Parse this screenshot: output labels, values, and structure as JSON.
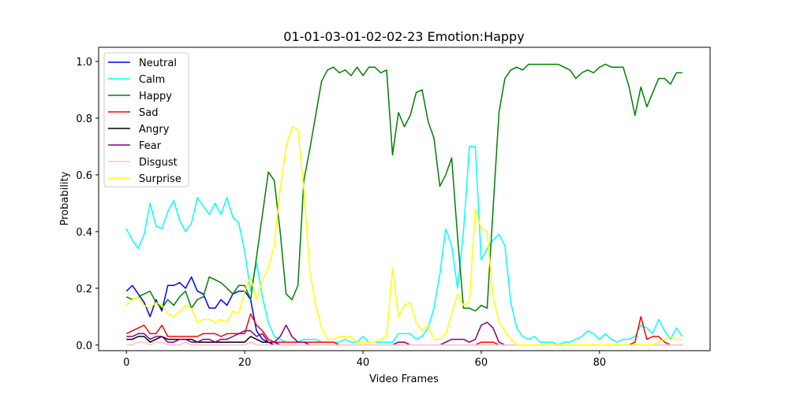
{
  "chart_data": {
    "type": "line",
    "title": "01-01-03-01-02-02-23 Emotion:Happy",
    "xlabel": "Video Frames",
    "ylabel": "Probability",
    "xlim": [
      -4.7,
      98.7
    ],
    "ylim": [
      -0.02,
      1.05
    ],
    "xticks": [
      0,
      20,
      40,
      60,
      80
    ],
    "yticks": [
      0.0,
      0.2,
      0.4,
      0.6,
      0.8,
      1.0
    ],
    "ytick_labels": [
      "0.0",
      "0.2",
      "0.4",
      "0.6",
      "0.8",
      "1.0"
    ],
    "legend_position": "upper-left",
    "grid": false,
    "x": [
      0,
      1,
      2,
      3,
      4,
      5,
      6,
      7,
      8,
      9,
      10,
      11,
      12,
      13,
      14,
      15,
      16,
      17,
      18,
      19,
      20,
      21,
      22,
      23,
      24,
      25,
      26,
      27,
      28,
      29,
      30,
      31,
      32,
      33,
      34,
      35,
      36,
      37,
      38,
      39,
      40,
      41,
      42,
      43,
      44,
      45,
      46,
      47,
      48,
      49,
      50,
      51,
      52,
      53,
      54,
      55,
      56,
      57,
      58,
      59,
      60,
      61,
      62,
      63,
      64,
      65,
      66,
      67,
      68,
      69,
      70,
      71,
      72,
      73,
      74,
      75,
      76,
      77,
      78,
      79,
      80,
      81,
      82,
      83,
      84,
      85,
      86,
      87,
      88,
      89,
      90,
      91,
      92,
      93,
      94
    ],
    "series": [
      {
        "name": "Neutral",
        "color": "#0000ff",
        "values": [
          0.19,
          0.21,
          0.18,
          0.15,
          0.1,
          0.16,
          0.12,
          0.21,
          0.21,
          0.22,
          0.2,
          0.24,
          0.19,
          0.18,
          0.13,
          0.13,
          0.16,
          0.14,
          0.18,
          0.19,
          0.19,
          0.16,
          0.05,
          0.02,
          0.01,
          0.01,
          0.0,
          0.0,
          0.0,
          0.0,
          0.0,
          0.0,
          0.0,
          0.0,
          0.0,
          0.0,
          0.0,
          0.0,
          0.0,
          0.0,
          0.0,
          0.0,
          0.0,
          0.0,
          0.0,
          0.0,
          0.0,
          0.0,
          0.0,
          0.0,
          0.0,
          0.0,
          0.0,
          0.0,
          0.0,
          0.0,
          0.0,
          0.0,
          0.0,
          0.0,
          0.0,
          0.0,
          0.0,
          0.0,
          0.0,
          0.0,
          0.0,
          0.0,
          0.0,
          0.0,
          0.0,
          0.0,
          0.0,
          0.0,
          0.0,
          0.0,
          0.0,
          0.0,
          0.0,
          0.0,
          0.0,
          0.0,
          0.0,
          0.0,
          0.0,
          0.0,
          0.0,
          0.0,
          0.0,
          0.0,
          0.0,
          0.0,
          0.0,
          0.0,
          0.0
        ]
      },
      {
        "name": "Calm",
        "color": "#00ffff",
        "values": [
          0.41,
          0.37,
          0.34,
          0.39,
          0.5,
          0.42,
          0.41,
          0.47,
          0.51,
          0.44,
          0.4,
          0.43,
          0.52,
          0.49,
          0.46,
          0.5,
          0.46,
          0.52,
          0.45,
          0.43,
          0.33,
          0.19,
          0.29,
          0.17,
          0.08,
          0.03,
          0.02,
          0.01,
          0.01,
          0.01,
          0.02,
          0.02,
          0.02,
          0.01,
          0.01,
          0.01,
          0.01,
          0.02,
          0.01,
          0.01,
          0.03,
          0.01,
          0.01,
          0.01,
          0.01,
          0.01,
          0.04,
          0.04,
          0.04,
          0.02,
          0.03,
          0.06,
          0.13,
          0.25,
          0.41,
          0.35,
          0.2,
          0.4,
          0.7,
          0.7,
          0.3,
          0.34,
          0.37,
          0.39,
          0.35,
          0.15,
          0.06,
          0.03,
          0.02,
          0.03,
          0.01,
          0.01,
          0.01,
          0.0,
          0.01,
          0.01,
          0.02,
          0.03,
          0.05,
          0.04,
          0.02,
          0.04,
          0.02,
          0.01,
          0.02,
          0.02,
          0.03,
          0.07,
          0.06,
          0.04,
          0.09,
          0.05,
          0.02,
          0.06,
          0.03
        ]
      },
      {
        "name": "Happy",
        "color": "#008000",
        "values": [
          0.17,
          0.16,
          0.17,
          0.18,
          0.19,
          0.15,
          0.13,
          0.16,
          0.14,
          0.17,
          0.19,
          0.13,
          0.16,
          0.17,
          0.24,
          0.23,
          0.22,
          0.2,
          0.18,
          0.21,
          0.21,
          0.16,
          0.31,
          0.46,
          0.61,
          0.58,
          0.4,
          0.18,
          0.16,
          0.21,
          0.58,
          0.69,
          0.81,
          0.93,
          0.97,
          0.98,
          0.96,
          0.97,
          0.95,
          0.98,
          0.95,
          0.98,
          0.98,
          0.96,
          0.97,
          0.67,
          0.82,
          0.77,
          0.81,
          0.89,
          0.9,
          0.79,
          0.73,
          0.56,
          0.6,
          0.66,
          0.38,
          0.13,
          0.13,
          0.12,
          0.14,
          0.13,
          0.48,
          0.82,
          0.94,
          0.97,
          0.98,
          0.97,
          0.99,
          0.99,
          0.99,
          0.99,
          0.99,
          0.99,
          0.98,
          0.97,
          0.94,
          0.96,
          0.97,
          0.96,
          0.98,
          0.99,
          0.98,
          0.98,
          0.98,
          0.91,
          0.81,
          0.91,
          0.84,
          0.89,
          0.94,
          0.94,
          0.92,
          0.96,
          0.96
        ]
      },
      {
        "name": "Sad",
        "color": "#ff0000",
        "values": [
          0.04,
          0.05,
          0.06,
          0.07,
          0.04,
          0.04,
          0.07,
          0.03,
          0.03,
          0.03,
          0.03,
          0.03,
          0.03,
          0.04,
          0.04,
          0.04,
          0.03,
          0.04,
          0.04,
          0.04,
          0.04,
          0.11,
          0.07,
          0.05,
          0.02,
          0.01,
          0.01,
          0.01,
          0.01,
          0.01,
          0.01,
          0.01,
          0.01,
          0.01,
          0.01,
          0.01,
          0.0,
          0.0,
          0.0,
          0.0,
          0.0,
          0.0,
          0.0,
          0.0,
          0.0,
          0.0,
          0.0,
          0.0,
          0.0,
          0.0,
          0.0,
          0.0,
          0.0,
          0.0,
          0.0,
          0.0,
          0.0,
          0.0,
          0.0,
          0.0,
          0.01,
          0.01,
          0.01,
          0.0,
          0.0,
          0.0,
          0.0,
          0.0,
          0.0,
          0.0,
          0.0,
          0.0,
          0.0,
          0.0,
          0.0,
          0.0,
          0.0,
          0.0,
          0.0,
          0.0,
          0.0,
          0.0,
          0.0,
          0.0,
          0.0,
          0.0,
          0.01,
          0.1,
          0.02,
          0.03,
          0.03,
          0.01,
          0.0,
          0.0,
          0.0
        ]
      },
      {
        "name": "Angry",
        "color": "#000000",
        "values": [
          0.02,
          0.02,
          0.03,
          0.03,
          0.01,
          0.02,
          0.03,
          0.02,
          0.02,
          0.02,
          0.02,
          0.02,
          0.01,
          0.01,
          0.01,
          0.01,
          0.01,
          0.01,
          0.01,
          0.01,
          0.01,
          0.03,
          0.02,
          0.01,
          0.01,
          0.0,
          0.0,
          0.0,
          0.0,
          0.0,
          0.0,
          0.0,
          0.0,
          0.0,
          0.0,
          0.0,
          0.0,
          0.0,
          0.0,
          0.0,
          0.0,
          0.0,
          0.0,
          0.0,
          0.0,
          0.0,
          0.0,
          0.0,
          0.0,
          0.0,
          0.0,
          0.0,
          0.0,
          0.0,
          0.0,
          0.0,
          0.0,
          0.0,
          0.0,
          0.0,
          0.0,
          0.0,
          0.0,
          0.0,
          0.0,
          0.0,
          0.0,
          0.0,
          0.0,
          0.0,
          0.0,
          0.0,
          0.0,
          0.0,
          0.0,
          0.0,
          0.0,
          0.0,
          0.0,
          0.0,
          0.0,
          0.0,
          0.0,
          0.0,
          0.0,
          0.0,
          0.0,
          0.0,
          0.0,
          0.0,
          0.0,
          0.0,
          0.0,
          0.0,
          0.0
        ]
      },
      {
        "name": "Fear",
        "color": "#800080",
        "values": [
          0.03,
          0.03,
          0.04,
          0.04,
          0.02,
          0.03,
          0.03,
          0.01,
          0.01,
          0.02,
          0.02,
          0.01,
          0.01,
          0.02,
          0.02,
          0.01,
          0.02,
          0.02,
          0.03,
          0.04,
          0.05,
          0.05,
          0.03,
          0.04,
          0.01,
          0.01,
          0.03,
          0.07,
          0.03,
          0.01,
          0.01,
          0.0,
          0.0,
          0.0,
          0.0,
          0.0,
          0.0,
          0.0,
          0.0,
          0.0,
          0.0,
          0.0,
          0.0,
          0.0,
          0.0,
          0.0,
          0.01,
          0.01,
          0.0,
          0.0,
          0.0,
          0.0,
          0.0,
          0.0,
          0.01,
          0.02,
          0.02,
          0.02,
          0.01,
          0.02,
          0.07,
          0.08,
          0.06,
          0.01,
          0.0,
          0.0,
          0.0,
          0.0,
          0.0,
          0.0,
          0.0,
          0.0,
          0.0,
          0.0,
          0.0,
          0.0,
          0.0,
          0.0,
          0.0,
          0.0,
          0.0,
          0.0,
          0.0,
          0.0,
          0.0,
          0.0,
          0.0,
          0.0,
          0.0,
          0.0,
          0.0,
          0.0,
          0.0,
          0.0,
          0.0
        ]
      },
      {
        "name": "Disgust",
        "color": "#ffc0cb",
        "values": [
          0.0,
          0.0,
          0.01,
          0.01,
          0.0,
          0.01,
          0.01,
          0.0,
          0.0,
          0.0,
          0.01,
          0.0,
          0.0,
          0.0,
          0.0,
          0.0,
          0.0,
          0.0,
          0.0,
          0.0,
          0.0,
          0.01,
          0.0,
          0.0,
          0.0,
          0.0,
          0.0,
          0.0,
          0.0,
          0.0,
          0.0,
          0.0,
          0.0,
          0.0,
          0.0,
          0.0,
          0.0,
          0.0,
          0.0,
          0.0,
          0.0,
          0.0,
          0.0,
          0.0,
          0.0,
          0.0,
          0.0,
          0.0,
          0.0,
          0.0,
          0.0,
          0.0,
          0.0,
          0.0,
          0.0,
          0.0,
          0.0,
          0.0,
          0.0,
          0.0,
          0.0,
          0.0,
          0.0,
          0.0,
          0.0,
          0.0,
          0.0,
          0.0,
          0.0,
          0.0,
          0.0,
          0.0,
          0.0,
          0.0,
          0.0,
          0.0,
          0.0,
          0.0,
          0.0,
          0.0,
          0.0,
          0.0,
          0.0,
          0.0,
          0.0,
          0.0,
          0.0,
          0.0,
          0.0,
          0.0,
          0.0,
          0.0,
          0.0,
          0.0,
          0.0
        ]
      },
      {
        "name": "Surprise",
        "color": "#ffff00",
        "values": [
          0.14,
          0.16,
          0.17,
          0.14,
          0.13,
          0.15,
          0.14,
          0.11,
          0.1,
          0.12,
          0.14,
          0.13,
          0.08,
          0.09,
          0.09,
          0.08,
          0.09,
          0.08,
          0.12,
          0.11,
          0.19,
          0.24,
          0.16,
          0.23,
          0.27,
          0.35,
          0.55,
          0.7,
          0.77,
          0.76,
          0.55,
          0.26,
          0.14,
          0.06,
          0.02,
          0.02,
          0.03,
          0.03,
          0.03,
          0.01,
          0.01,
          0.01,
          0.01,
          0.02,
          0.03,
          0.27,
          0.1,
          0.14,
          0.15,
          0.08,
          0.05,
          0.07,
          0.02,
          0.02,
          0.04,
          0.11,
          0.18,
          0.14,
          0.15,
          0.48,
          0.41,
          0.4,
          0.17,
          0.08,
          0.05,
          0.02,
          0.0,
          0.0,
          0.0,
          0.0,
          0.0,
          0.0,
          0.0,
          0.0,
          0.0,
          0.0,
          0.0,
          0.0,
          0.0,
          0.0,
          0.0,
          0.0,
          0.0,
          0.0,
          0.0,
          0.0,
          0.0,
          0.0,
          0.0,
          0.0,
          0.01,
          0.02,
          0.03,
          0.02,
          0.02
        ]
      }
    ]
  }
}
